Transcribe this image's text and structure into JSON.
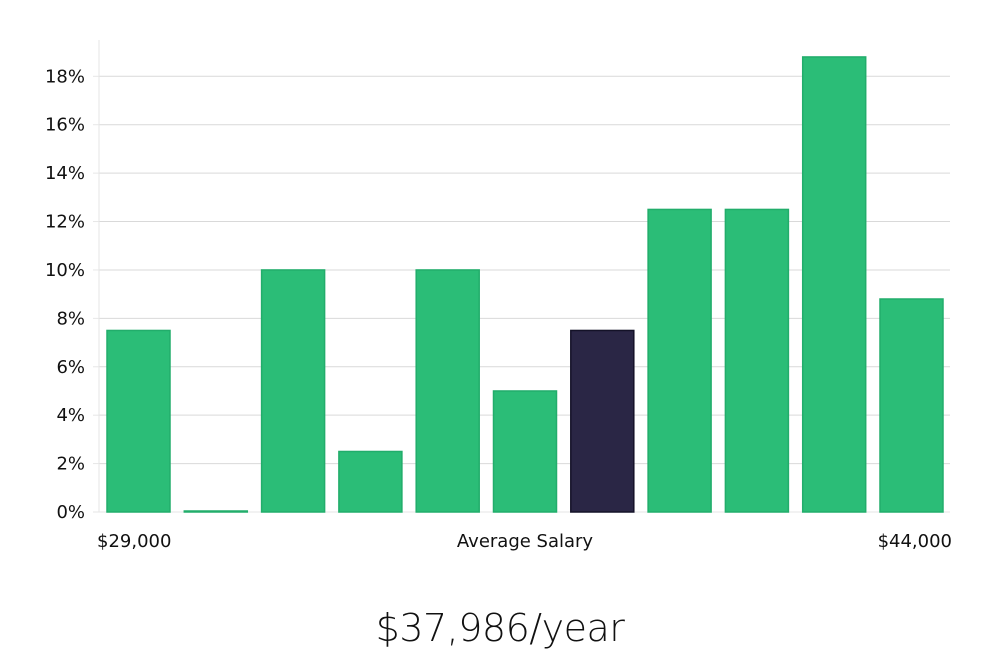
{
  "chart_data": {
    "type": "bar",
    "title": "",
    "xlabel": "Average Salary",
    "ylabel": "",
    "x_min_label": "$29,000",
    "x_max_label": "$44,000",
    "ylim": [
      0,
      19.5
    ],
    "yticks": [
      0,
      2,
      4,
      6,
      8,
      10,
      12,
      14,
      16,
      18
    ],
    "ytick_labels": [
      "0%",
      "2%",
      "4%",
      "6%",
      "8%",
      "10%",
      "12%",
      "14%",
      "16%",
      "18%"
    ],
    "grid": true,
    "values": [
      7.5,
      0.0,
      10.0,
      2.5,
      10.0,
      5.0,
      7.5,
      12.5,
      12.5,
      18.8,
      8.8
    ],
    "highlight_index": 6,
    "colors": {
      "bar": "#2bbd77",
      "bar_border": "#22ad6b",
      "highlight": "#2a2645",
      "highlight_border": "#141228",
      "grid": "#d9d9d9",
      "axis": "#e6e6e6"
    }
  },
  "summary": {
    "average_salary_text": "$37,986/year"
  }
}
